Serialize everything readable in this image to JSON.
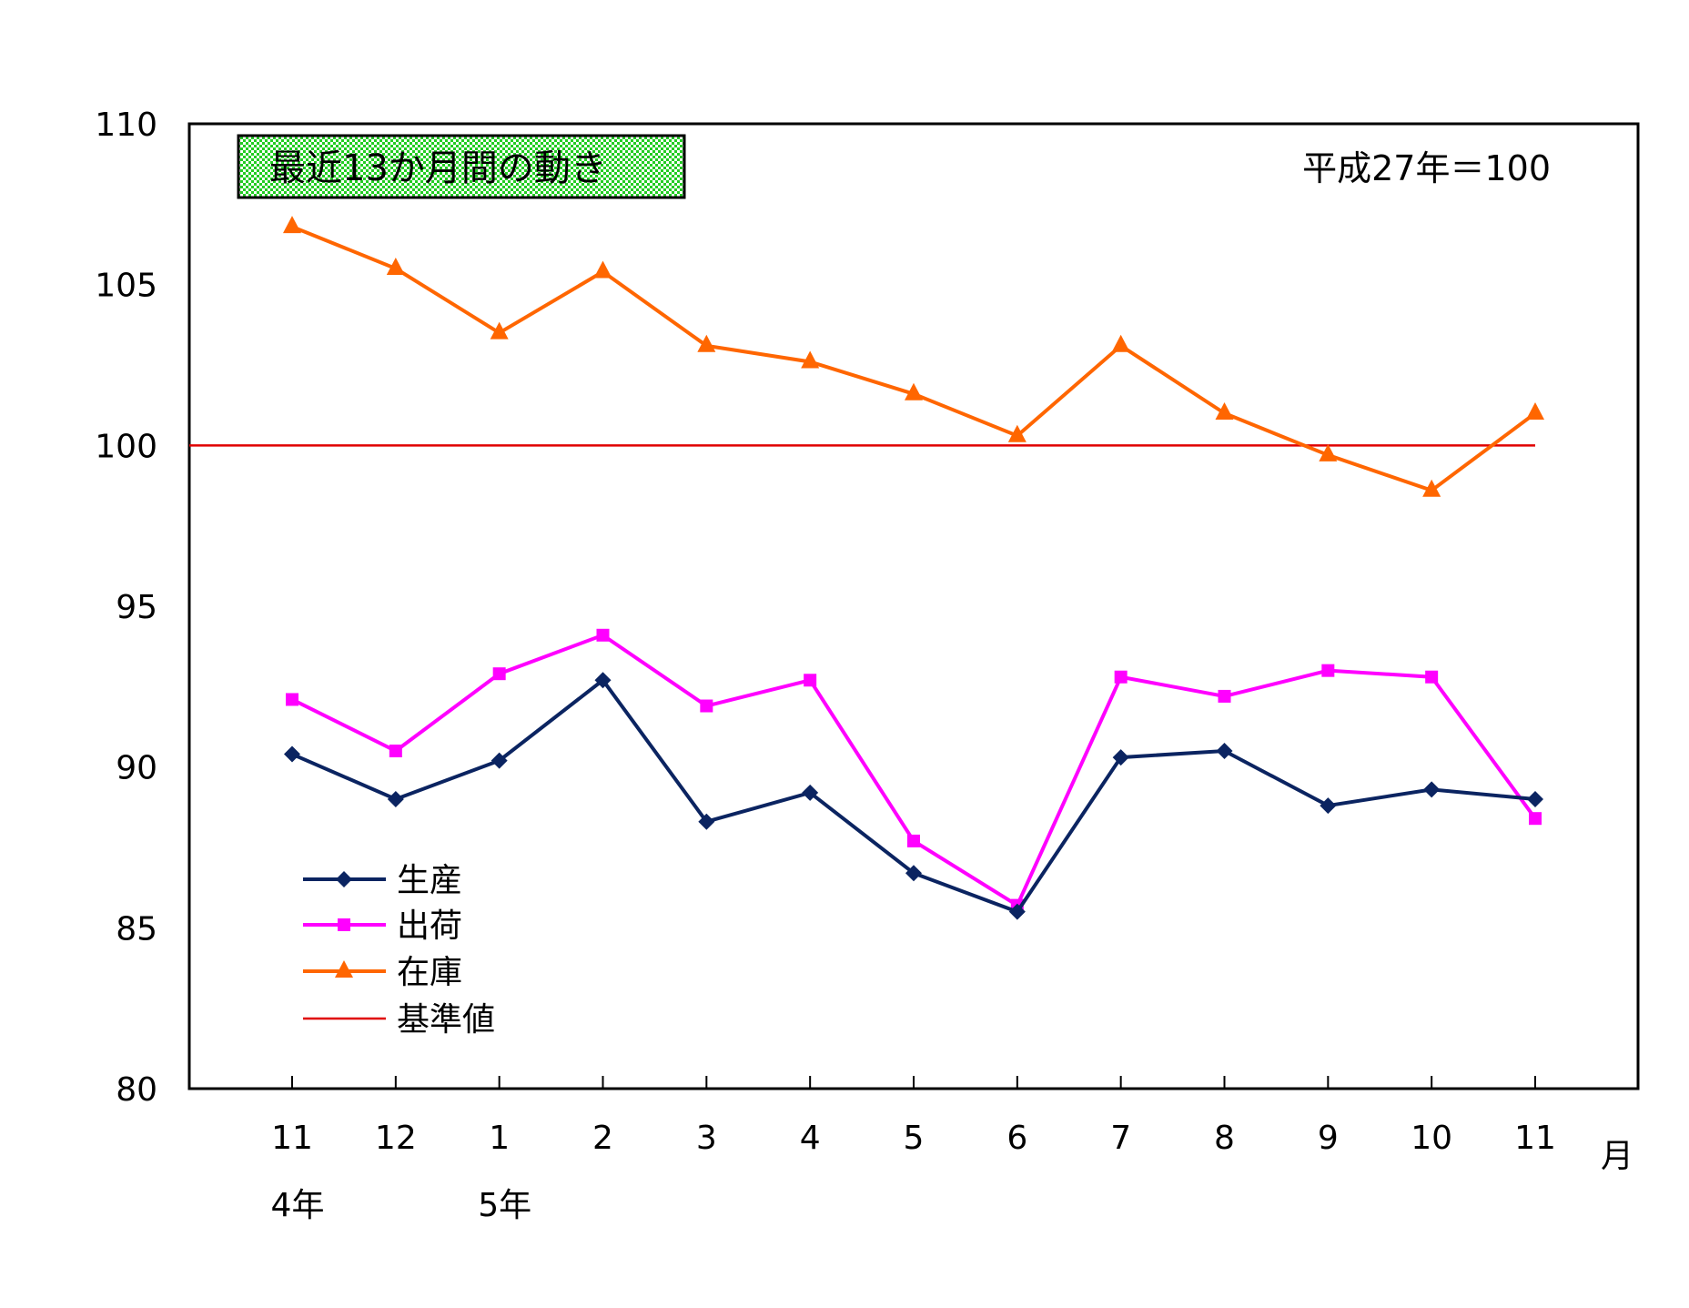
{
  "chart_data": {
    "type": "line",
    "title": "最近13か月間の動き",
    "note": "平成27年＝100",
    "xlabel": "月",
    "ylabel": "",
    "ylim": [
      80,
      110
    ],
    "yticks": [
      "80",
      "85",
      "90",
      "95",
      "100",
      "105",
      "110"
    ],
    "categories": [
      "11",
      "12",
      "1",
      "2",
      "3",
      "4",
      "5",
      "6",
      "7",
      "8",
      "9",
      "10",
      "11"
    ],
    "year_labels": [
      {
        "label": "4年",
        "index": 0
      },
      {
        "label": "5年",
        "index": 2
      }
    ],
    "grid": false,
    "legend_position": "bottom-left",
    "series": [
      {
        "name": "生産",
        "color": "#0b2461",
        "marker": "diamond",
        "values": [
          90.4,
          89.0,
          90.2,
          92.7,
          88.3,
          89.2,
          86.7,
          85.5,
          90.3,
          90.5,
          88.8,
          89.3,
          89.0
        ]
      },
      {
        "name": "出荷",
        "color": "#ff00ff",
        "marker": "square",
        "values": [
          92.1,
          90.5,
          92.9,
          94.1,
          91.9,
          92.7,
          87.7,
          85.7,
          92.8,
          92.2,
          93.0,
          92.8,
          88.4
        ]
      },
      {
        "name": "在庫",
        "color": "#ff6600",
        "marker": "triangle",
        "values": [
          106.8,
          105.5,
          103.5,
          105.4,
          103.1,
          102.6,
          101.6,
          100.3,
          103.1,
          101.0,
          99.7,
          98.6,
          101.0
        ]
      },
      {
        "name": "基準値",
        "color": "#e00000",
        "marker": "none",
        "values": [
          100,
          100,
          100,
          100,
          100,
          100,
          100,
          100,
          100,
          100,
          100,
          100,
          100
        ]
      }
    ]
  }
}
